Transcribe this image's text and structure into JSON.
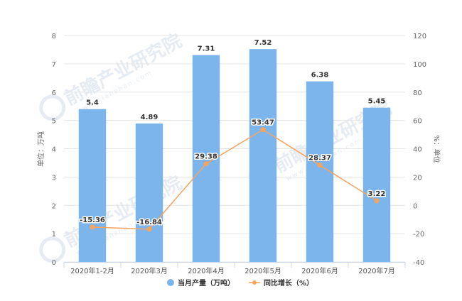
{
  "chart_data": {
    "type": "bar",
    "categories": [
      "2020年1-2月",
      "2020年3月",
      "2020年4月",
      "2020年5月",
      "2020年6月",
      "2020年7月"
    ],
    "series": [
      {
        "name": "当月产量（万吨）",
        "type": "bar",
        "axis": "left",
        "values": [
          5.4,
          4.89,
          7.31,
          7.52,
          6.38,
          5.45
        ],
        "labels": [
          "5.4",
          "4.89",
          "7.31",
          "7.52",
          "6.38",
          "5.45"
        ]
      },
      {
        "name": "同比增长（%）",
        "type": "line",
        "axis": "right",
        "values": [
          -15.36,
          -16.84,
          29.38,
          53.47,
          28.37,
          3.22
        ],
        "labels": [
          "-15.36",
          "-16.84",
          "29.38",
          "53.47",
          "28.37",
          "3.22"
        ]
      }
    ],
    "ylabel": "单位：万吨",
    "y2label": "%：单位",
    "ylim": [
      0,
      8
    ],
    "y_ticks": [
      "0",
      "1",
      "2",
      "3",
      "4",
      "5",
      "6",
      "7",
      "8"
    ],
    "y2lim": [
      -40,
      120
    ],
    "y2_ticks": [
      "-40",
      "-20",
      "0",
      "20",
      "40",
      "60",
      "80",
      "100",
      "120"
    ],
    "grid": true,
    "legend_position": "bottom",
    "colors": {
      "bar": "#7cb5ec",
      "line": "#f7a35c",
      "watermark": "#e6ecf2"
    }
  },
  "watermark": {
    "main": "前瞻产业研究院",
    "sub": "www.qianzhan.com"
  }
}
